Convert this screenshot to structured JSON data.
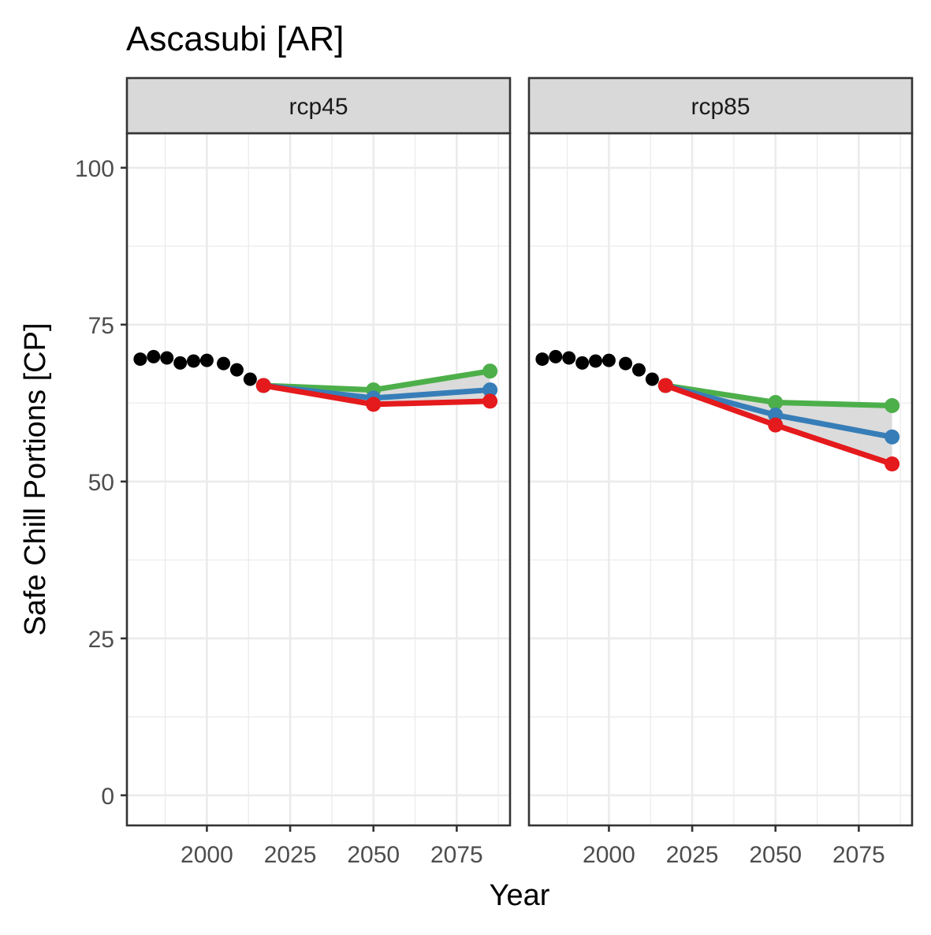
{
  "chart_data": {
    "type": "line",
    "title": "Ascasubi [AR]",
    "xlabel": "Year",
    "ylabel": "Safe Chill Portions [CP]",
    "xlim": [
      1976,
      2091
    ],
    "ylim": [
      -4.8,
      105.5
    ],
    "x_ticks": [
      2000,
      2025,
      2050,
      2075
    ],
    "y_ticks": [
      0,
      25,
      50,
      75,
      100
    ],
    "grid": true,
    "legend": "none",
    "colors": {
      "historical": "#000000",
      "upper": "#4DAF4A",
      "median": "#377EB8",
      "lower": "#E41A1C",
      "band": "#d9d9d9",
      "strip_bg": "#d9d9d9",
      "grid": "#ebebeb"
    },
    "panels": [
      {
        "strip": "rcp45",
        "historical": {
          "x": [
            1980,
            1984,
            1988,
            1992,
            1996,
            2000,
            2005,
            2009,
            2013,
            2017
          ],
          "y": [
            69.5,
            69.9,
            69.7,
            68.9,
            69.2,
            69.3,
            68.8,
            67.8,
            66.3,
            65.3
          ]
        },
        "series": [
          {
            "x": [
              2017,
              2050,
              2085
            ],
            "y": [
              65.3,
              64.6,
              67.6
            ]
          },
          {
            "x": [
              2017,
              2050,
              2085
            ],
            "y": [
              65.3,
              63.3,
              64.6
            ]
          },
          {
            "x": [
              2017,
              2050,
              2085
            ],
            "y": [
              65.3,
              62.3,
              62.8
            ]
          }
        ]
      },
      {
        "strip": "rcp85",
        "historical": {
          "x": [
            1980,
            1984,
            1988,
            1992,
            1996,
            2000,
            2005,
            2009,
            2013,
            2017
          ],
          "y": [
            69.5,
            69.9,
            69.7,
            68.9,
            69.2,
            69.3,
            68.8,
            67.8,
            66.3,
            65.3
          ]
        },
        "series": [
          {
            "x": [
              2017,
              2050,
              2085
            ],
            "y": [
              65.3,
              62.6,
              62.1
            ]
          },
          {
            "x": [
              2017,
              2050,
              2085
            ],
            "y": [
              65.3,
              60.6,
              57.1
            ]
          },
          {
            "x": [
              2017,
              2050,
              2085
            ],
            "y": [
              65.3,
              59.0,
              52.8
            ]
          }
        ]
      }
    ]
  }
}
